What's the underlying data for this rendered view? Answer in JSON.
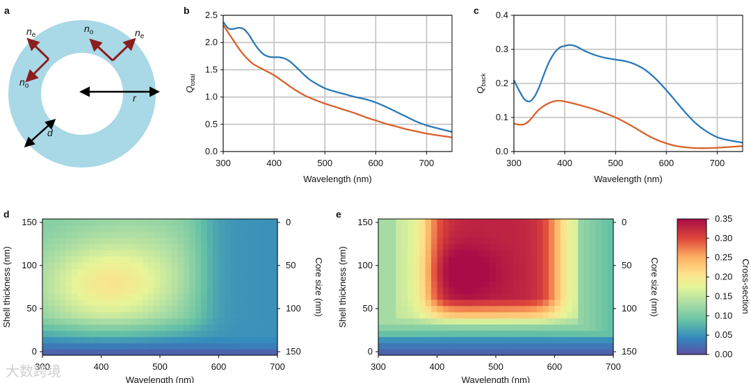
{
  "watermark": "大数跨境",
  "panel_a": {
    "letter": "a",
    "labels": {
      "ne_left": "n",
      "ne_left_sub": "e",
      "no_left": "n",
      "no_left_sub": "o",
      "no_top": "n",
      "no_top_sub": "o",
      "ne_right": "n",
      "ne_right_sub": "e",
      "r": "r",
      "d": "d"
    },
    "colors": {
      "shell": "#a9d8e6",
      "arrow_dir": "#8b1e1e",
      "arrow": "#000000"
    }
  },
  "chart_data": [
    {
      "id": "b",
      "letter": "b",
      "type": "line",
      "xlabel": "Wavelength (nm)",
      "ylabel_main": "Q",
      "ylabel_sub": "total",
      "xlim": [
        300,
        750
      ],
      "ylim": [
        0,
        2.5
      ],
      "xticks": [
        300,
        400,
        500,
        600,
        700
      ],
      "yticks": [
        0.0,
        0.5,
        1.0,
        1.5,
        2.0,
        2.5
      ],
      "ytick_labels": [
        "0.0",
        "0.5",
        "1.0",
        "1.5",
        "2.0",
        "2.5"
      ],
      "grid": true,
      "series": [
        {
          "name": "blue",
          "color": "#2a78b5",
          "x": [
            300,
            310,
            320,
            330,
            340,
            350,
            360,
            370,
            380,
            390,
            400,
            410,
            420,
            430,
            440,
            450,
            460,
            470,
            480,
            500,
            520,
            540,
            560,
            580,
            600,
            620,
            640,
            660,
            680,
            700,
            720,
            750
          ],
          "y": [
            2.38,
            2.26,
            2.25,
            2.27,
            2.25,
            2.15,
            2.0,
            1.87,
            1.78,
            1.74,
            1.73,
            1.73,
            1.71,
            1.66,
            1.58,
            1.49,
            1.4,
            1.32,
            1.26,
            1.16,
            1.1,
            1.05,
            1.0,
            0.96,
            0.9,
            0.82,
            0.73,
            0.64,
            0.55,
            0.48,
            0.43,
            0.36
          ]
        },
        {
          "name": "orange",
          "color": "#d9602a",
          "x": [
            300,
            310,
            320,
            330,
            340,
            350,
            360,
            380,
            400,
            420,
            440,
            460,
            480,
            500,
            520,
            540,
            560,
            580,
            600,
            620,
            640,
            660,
            680,
            700,
            720,
            750
          ],
          "y": [
            2.32,
            2.18,
            2.04,
            1.9,
            1.78,
            1.68,
            1.6,
            1.5,
            1.4,
            1.27,
            1.14,
            1.03,
            0.95,
            0.88,
            0.82,
            0.76,
            0.7,
            0.63,
            0.57,
            0.51,
            0.46,
            0.41,
            0.37,
            0.33,
            0.3,
            0.26
          ]
        }
      ]
    },
    {
      "id": "c",
      "letter": "c",
      "type": "line",
      "xlabel": "Wavelength (nm)",
      "ylabel_main": "Q",
      "ylabel_sub": "back",
      "xlim": [
        300,
        750
      ],
      "ylim": [
        0,
        0.4
      ],
      "xticks": [
        300,
        400,
        500,
        600,
        700
      ],
      "yticks": [
        0.0,
        0.1,
        0.2,
        0.3,
        0.4
      ],
      "ytick_labels": [
        "0.0",
        "0.1",
        "0.2",
        "0.3",
        "0.4"
      ],
      "grid": true,
      "series": [
        {
          "name": "blue",
          "color": "#2a78b5",
          "x": [
            300,
            310,
            320,
            330,
            340,
            350,
            360,
            370,
            380,
            390,
            400,
            410,
            420,
            430,
            440,
            460,
            480,
            500,
            520,
            540,
            560,
            580,
            600,
            620,
            640,
            660,
            680,
            700,
            720,
            750
          ],
          "y": [
            0.21,
            0.18,
            0.155,
            0.147,
            0.16,
            0.19,
            0.23,
            0.265,
            0.29,
            0.305,
            0.31,
            0.313,
            0.31,
            0.303,
            0.295,
            0.283,
            0.275,
            0.27,
            0.265,
            0.255,
            0.238,
            0.212,
            0.18,
            0.145,
            0.11,
            0.08,
            0.058,
            0.042,
            0.034,
            0.026
          ]
        },
        {
          "name": "orange",
          "color": "#d9602a",
          "x": [
            300,
            310,
            320,
            330,
            340,
            350,
            360,
            370,
            380,
            390,
            400,
            420,
            440,
            460,
            480,
            500,
            520,
            540,
            560,
            580,
            600,
            620,
            640,
            660,
            680,
            700,
            720,
            750
          ],
          "y": [
            0.082,
            0.079,
            0.08,
            0.09,
            0.108,
            0.124,
            0.135,
            0.143,
            0.148,
            0.149,
            0.147,
            0.14,
            0.132,
            0.123,
            0.112,
            0.1,
            0.085,
            0.068,
            0.05,
            0.035,
            0.024,
            0.016,
            0.012,
            0.01,
            0.01,
            0.011,
            0.013,
            0.016
          ]
        }
      ]
    },
    {
      "id": "d",
      "letter": "d",
      "type": "heatmap",
      "xlabel": "Wavelength (nm)",
      "ylabel_left": "Shell thickness (nm)",
      "ylabel_right": "Core size (nm)",
      "xlim": [
        300,
        700
      ],
      "ylim": [
        0,
        155
      ],
      "xticks": [
        300,
        400,
        500,
        600,
        700
      ],
      "yticks": [
        0,
        50,
        100,
        150
      ],
      "right_ticks": [
        150,
        100,
        50,
        0
      ]
    },
    {
      "id": "e",
      "letter": "e",
      "type": "heatmap",
      "xlabel": "Wavelength (nm)",
      "ylabel_left": "Shell thickness (nm)",
      "ylabel_right": "Core size (nm)",
      "xlim": [
        300,
        700
      ],
      "ylim": [
        0,
        155
      ],
      "xticks": [
        300,
        400,
        500,
        600,
        700
      ],
      "yticks": [
        0,
        50,
        100,
        150
      ],
      "right_ticks": [
        150,
        100,
        50,
        0
      ]
    },
    {
      "id": "colorbar",
      "type": "colorbar",
      "label": "Cross-section",
      "range": [
        0,
        0.35
      ],
      "ticks": [
        "0.00",
        "0.05",
        "0.10",
        "0.15",
        "0.20",
        "0.25",
        "0.30",
        "0.35"
      ]
    }
  ]
}
